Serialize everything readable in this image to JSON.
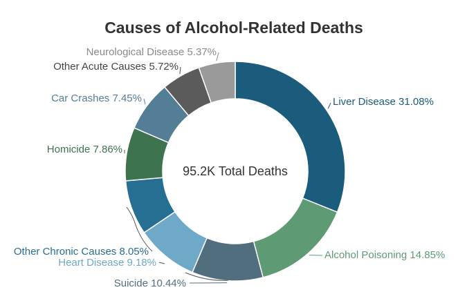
{
  "chart_data": {
    "type": "pie",
    "title": "Causes of Alcohol-Related Deaths",
    "center_label": "95.2K Total Deaths",
    "slices": [
      {
        "name": "Liver Disease",
        "value": 31.08,
        "label": "Liver Disease 31.08%",
        "color": "#1b5b7c",
        "label_color": "#1b5b7c"
      },
      {
        "name": "Alcohol Poisoning",
        "value": 14.85,
        "label": "Alcohol Poisoning 14.85%",
        "color": "#5e9a74",
        "label_color": "#5e9a74"
      },
      {
        "name": "Suicide",
        "value": 10.44,
        "label": "Suicide 10.44%",
        "color": "#516e7e",
        "label_color": "#516e7e"
      },
      {
        "name": "Heart Disease",
        "value": 9.18,
        "label": "Heart Disease 9.18%",
        "color": "#6ea9c7",
        "label_color": "#6ea9c7"
      },
      {
        "name": "Other Chronic Causes",
        "value": 8.05,
        "label": "Other Chronic Causes 8.05%",
        "color": "#276e93",
        "label_color": "#276e93"
      },
      {
        "name": "Homicide",
        "value": 7.86,
        "label": "Homicide 7.86%",
        "color": "#3e7350",
        "label_color": "#3e7350"
      },
      {
        "name": "Car Crashes",
        "value": 7.45,
        "label": "Car Crashes 7.45%",
        "color": "#547e95",
        "label_color": "#547e95"
      },
      {
        "name": "Other Acute Causes",
        "value": 5.72,
        "label": "Other Acute Causes 5.72%",
        "color": "#5b5b5b",
        "label_color": "#444444"
      },
      {
        "name": "Neurological Disease",
        "value": 5.37,
        "label": "Neurological Disease 5.37%",
        "color": "#9a9a9a",
        "label_color": "#8a8a8a"
      }
    ]
  }
}
